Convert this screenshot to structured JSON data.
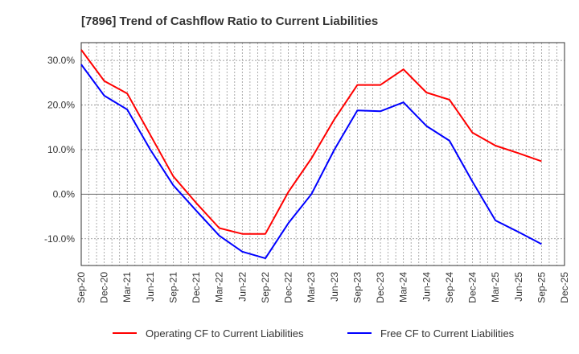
{
  "chart_data": {
    "type": "line",
    "title": "[7896]  Trend of Cashflow Ratio to Current Liabilities",
    "xlabel": "",
    "ylabel": "",
    "x": [
      "Sep-20",
      "Dec-20",
      "Mar-21",
      "Jun-21",
      "Sep-21",
      "Dec-21",
      "Mar-22",
      "Jun-22",
      "Sep-22",
      "Dec-22",
      "Mar-23",
      "Jun-23",
      "Sep-23",
      "Dec-23",
      "Mar-24",
      "Jun-24",
      "Sep-24",
      "Dec-24",
      "Mar-25",
      "Jun-25",
      "Sep-25",
      "Dec-25"
    ],
    "xtick_labels": [
      "Sep-20",
      "Dec-20",
      "Mar-21",
      "Jun-21",
      "Sep-21",
      "Dec-21",
      "Mar-22",
      "Jun-22",
      "Sep-22",
      "Dec-22",
      "Mar-23",
      "Jun-23",
      "Sep-23",
      "Dec-23",
      "Mar-24",
      "Jun-24",
      "Sep-24",
      "Dec-24",
      "Mar-25",
      "Jun-25",
      "Sep-25",
      "Dec-25"
    ],
    "ylim": [
      -16,
      34
    ],
    "yticks": [
      -10,
      0,
      10,
      20,
      30
    ],
    "ytick_labels": [
      "-10.0%",
      "0.0%",
      "10.0%",
      "20.0%",
      "30.0%"
    ],
    "grid": true,
    "legend_position": "bottom",
    "series": [
      {
        "name": "Operating CF to Current Liabilities",
        "color": "#ff0000",
        "values": [
          32.4,
          25.4,
          22.6,
          13.3,
          4.0,
          -2.0,
          -7.6,
          -8.9,
          -8.9,
          0.5,
          8.0,
          16.8,
          24.5,
          24.5,
          28.0,
          22.8,
          21.2,
          13.8,
          10.9,
          9.2,
          7.4,
          null
        ]
      },
      {
        "name": "Free CF to Current Liabilities",
        "color": "#0000ff",
        "values": [
          29.1,
          22.1,
          19.0,
          10.0,
          2.0,
          -3.7,
          -9.3,
          -12.9,
          -14.4,
          -6.5,
          0.0,
          10.0,
          18.8,
          18.6,
          20.6,
          15.3,
          12.0,
          2.8,
          -5.9,
          -8.5,
          -11.2,
          null
        ]
      }
    ]
  }
}
